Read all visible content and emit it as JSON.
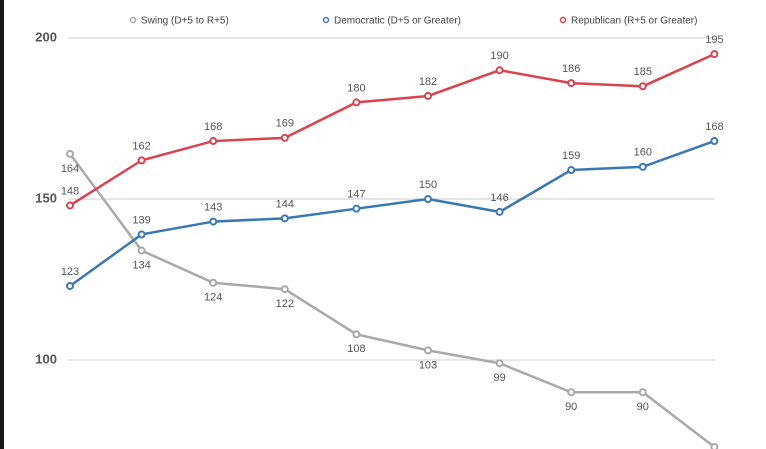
{
  "chart_data": {
    "type": "line",
    "categories": [
      null,
      null,
      null,
      null,
      null,
      null,
      null,
      null,
      null,
      null
    ],
    "series": [
      {
        "name": "Swing (D+5 to R+5)",
        "color": "#a9a9a9",
        "values": [
          164,
          134,
          124,
          122,
          108,
          103,
          99,
          90,
          90,
          73
        ]
      },
      {
        "name": "Democratic (D+5 or Greater)",
        "color": "#3a78b5",
        "values": [
          123,
          139,
          143,
          144,
          147,
          150,
          146,
          159,
          160,
          168
        ]
      },
      {
        "name": "Republican (R+5 or Greater)",
        "color": "#d8434f",
        "values": [
          148,
          162,
          168,
          169,
          180,
          182,
          190,
          186,
          185,
          195
        ]
      }
    ],
    "ylim": [
      73,
      200
    ],
    "yticks": [
      100,
      150,
      200
    ],
    "grid": true,
    "legend": "top"
  }
}
